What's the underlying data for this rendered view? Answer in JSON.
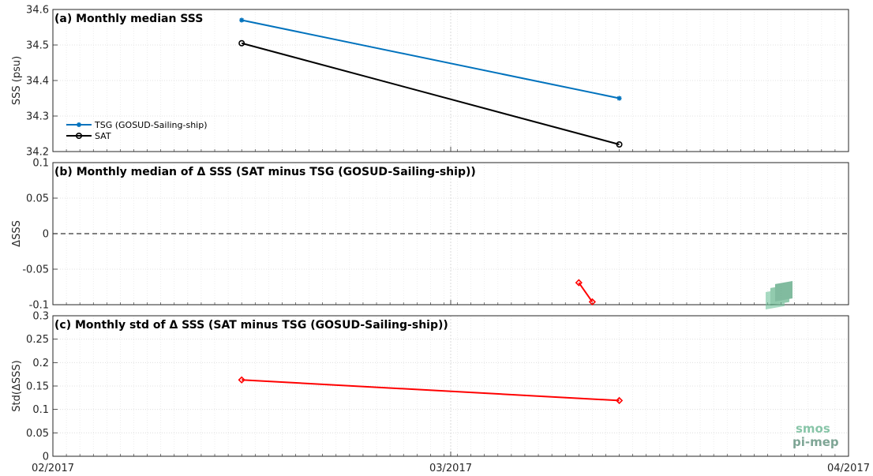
{
  "chart_data": [
    {
      "type": "line",
      "title": "(a) Monthly median SSS",
      "xlabel": "",
      "ylabel": "SSS (psu)",
      "ylim": [
        34.2,
        34.6
      ],
      "yticks": [
        "34.2",
        "34.3",
        "34.4",
        "34.5",
        "34.6"
      ],
      "grid": true,
      "legend": "bottom-left",
      "series": [
        {
          "name": "TSG (GOSUD-Sailing-ship)",
          "color": "#0072BD",
          "marker": "asterisk",
          "points": [
            {
              "x": "2017-02-15",
              "y": 34.57
            },
            {
              "x": "2017-03-15",
              "y": 34.35
            }
          ]
        },
        {
          "name": "SAT",
          "color": "#000000",
          "marker": "circle",
          "points": [
            {
              "x": "2017-02-15",
              "y": 34.505
            },
            {
              "x": "2017-03-15",
              "y": 34.22
            }
          ]
        }
      ]
    },
    {
      "type": "line",
      "title": "(b) Monthly median of Δ SSS (SAT minus TSG (GOSUD-Sailing-ship))",
      "xlabel": "",
      "ylabel": "ΔSSS",
      "ylim": [
        -0.1,
        0.1
      ],
      "yticks": [
        "-0.1",
        "-0.05",
        "0",
        "0.05",
        "0.1"
      ],
      "grid": true,
      "reference_line": 0,
      "series": [
        {
          "color": "#FF0000",
          "marker": "diamond",
          "points": [
            {
              "x": "2017-03-12",
              "y": -0.069
            },
            {
              "x": "2017-03-13",
              "y": -0.096
            }
          ]
        }
      ]
    },
    {
      "type": "line",
      "title": "(c) Monthly std of Δ SSS (SAT minus TSG (GOSUD-Sailing-ship))",
      "xlabel": "",
      "ylabel": "Std(ΔSSS)",
      "ylim": [
        0,
        0.3
      ],
      "yticks": [
        "0",
        "0.05",
        "0.1",
        "0.15",
        "0.2",
        "0.25",
        "0.3"
      ],
      "xlim": [
        "2017-02-01",
        "2017-04-01"
      ],
      "xticks": [
        "02/2017",
        "03/2017",
        "04/2017"
      ],
      "grid": true,
      "series": [
        {
          "color": "#FF0000",
          "marker": "diamond",
          "points": [
            {
              "x": "2017-02-15",
              "y": 0.163
            },
            {
              "x": "2017-03-15",
              "y": 0.119
            }
          ]
        }
      ]
    }
  ],
  "logo": {
    "line1": "smos",
    "line2": "pi-mep"
  }
}
